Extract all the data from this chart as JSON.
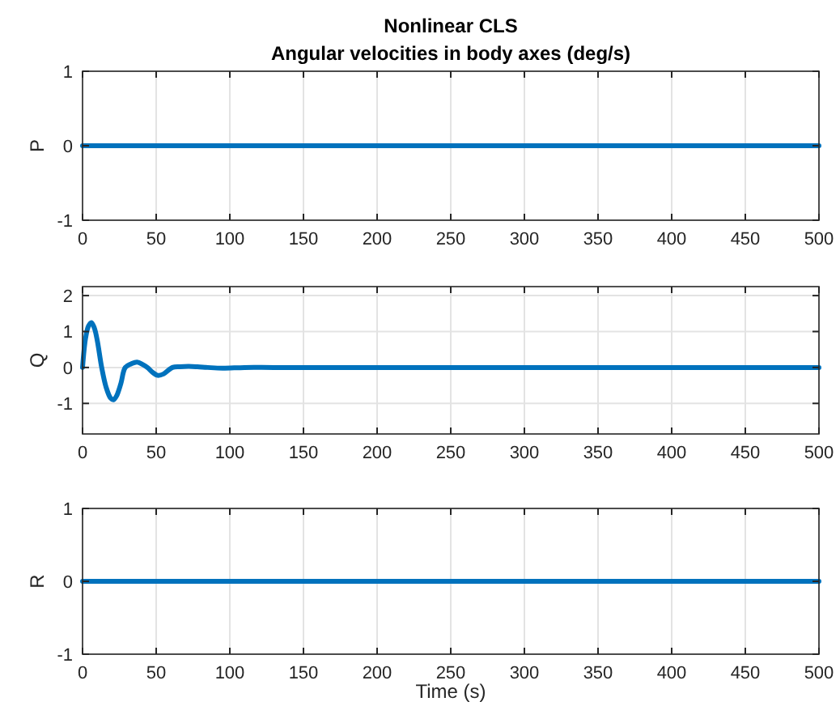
{
  "chart_data": [
    {
      "type": "line",
      "title": "Nonlinear CLS",
      "subtitle": "Angular velocities in body axes (deg/s)",
      "ylabel": "P",
      "x": [
        0,
        500
      ],
      "xlim": [
        0,
        500
      ],
      "xticks": [
        0,
        50,
        100,
        150,
        200,
        250,
        300,
        350,
        400,
        450,
        500
      ],
      "ylim": [
        -1,
        1
      ],
      "yticks": [
        -1,
        0,
        1
      ],
      "grid": true,
      "series": [
        {
          "color": "#0072bd",
          "values": [
            0,
            0
          ]
        }
      ]
    },
    {
      "type": "line",
      "ylabel": "Q",
      "x": [
        0,
        2,
        4,
        6,
        8,
        10,
        13,
        16,
        19,
        21,
        23,
        26,
        29,
        33,
        37,
        41,
        44,
        48,
        51,
        55,
        61,
        66,
        72,
        78,
        85,
        95,
        110,
        130,
        200,
        300,
        400,
        500
      ],
      "xlim": [
        0,
        500
      ],
      "xticks": [
        0,
        50,
        100,
        150,
        200,
        250,
        300,
        350,
        400,
        450,
        500
      ],
      "ylim": [
        -1.85,
        2.25
      ],
      "yticks": [
        -1,
        0,
        1,
        2
      ],
      "grid": true,
      "series": [
        {
          "color": "#0072bd",
          "values": [
            0,
            0.8,
            1.15,
            1.25,
            1.1,
            0.75,
            0,
            -0.55,
            -0.85,
            -0.9,
            -0.8,
            -0.45,
            0,
            0.1,
            0.15,
            0.08,
            0,
            -0.15,
            -0.22,
            -0.18,
            0,
            0.02,
            0.03,
            0.02,
            0,
            -0.02,
            0,
            0,
            0,
            0,
            0,
            0
          ]
        }
      ]
    },
    {
      "type": "line",
      "ylabel": "R",
      "xlabel": "Time (s)",
      "x": [
        0,
        500
      ],
      "xlim": [
        0,
        500
      ],
      "xticks": [
        0,
        50,
        100,
        150,
        200,
        250,
        300,
        350,
        400,
        450,
        500
      ],
      "ylim": [
        -1,
        1
      ],
      "yticks": [
        -1,
        0,
        1
      ],
      "grid": true,
      "series": [
        {
          "color": "#0072bd",
          "values": [
            0,
            0
          ]
        }
      ]
    }
  ]
}
